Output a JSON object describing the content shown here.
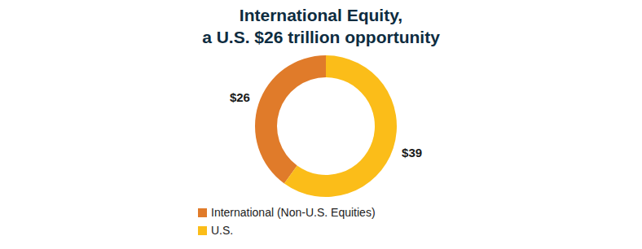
{
  "chart_data": {
    "type": "donut",
    "title": [
      "International Equity,",
      "a U.S. $26 trillion opportunity"
    ],
    "categories": [
      "International (Non-U.S. Equities)",
      "U.S."
    ],
    "values": [
      26,
      39
    ],
    "value_labels": [
      "$26",
      "$39"
    ],
    "colors": [
      "#e07b2a",
      "#fbbd19"
    ],
    "data_labels": true,
    "legend": "bottom-left"
  }
}
